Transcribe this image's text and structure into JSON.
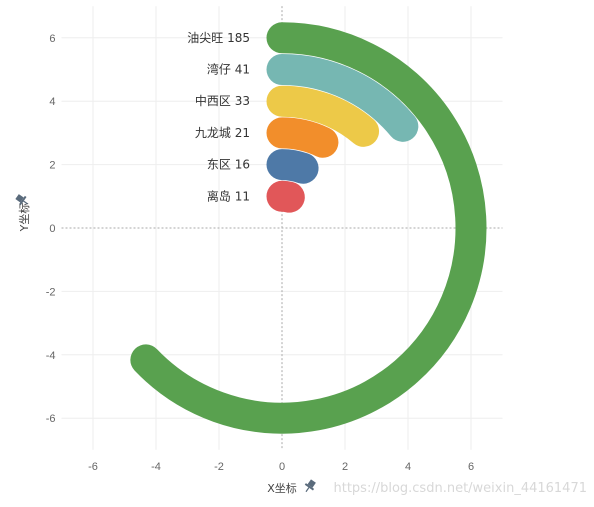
{
  "chart_data": {
    "type": "radial-bar",
    "xlabel": "X坐标",
    "ylabel": "Y坐标",
    "xlim": [
      -7,
      7
    ],
    "ylim": [
      -7,
      7
    ],
    "xticks": [
      -6,
      -4,
      -2,
      0,
      2,
      4,
      6
    ],
    "yticks": [
      -6,
      -4,
      -2,
      0,
      2,
      4,
      6
    ],
    "grid": true,
    "zero_lines": true,
    "pin_icon": "pin-icon",
    "bars": [
      {
        "category": "油尖旺",
        "value": 185,
        "label": "油尖旺 185",
        "color": "#59a14f"
      },
      {
        "category": "湾仔",
        "value": 41,
        "label": "湾仔 41",
        "color": "#76b7b2"
      },
      {
        "category": "中西区",
        "value": 33,
        "label": "中西区 33",
        "color": "#edc948"
      },
      {
        "category": "九龙城",
        "value": 21,
        "label": "九龙城 21",
        "color": "#f28e2b"
      },
      {
        "category": "东区",
        "value": 16,
        "label": "东区 16",
        "color": "#4e79a7"
      },
      {
        "category": "离岛",
        "value": 11,
        "label": "离岛 11",
        "color": "#e15759"
      }
    ],
    "radii": [
      6,
      5,
      4,
      3,
      2,
      1
    ]
  },
  "watermark": "https://blog.csdn.net/weixin_44161471"
}
